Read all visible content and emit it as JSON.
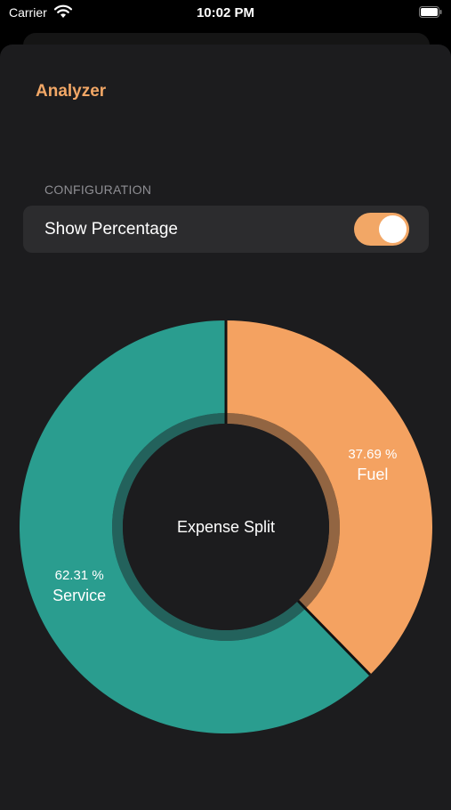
{
  "status": {
    "carrier": "Carrier",
    "time": "10:02 PM"
  },
  "page": {
    "title": "Analyzer"
  },
  "configuration": {
    "header": "CONFIGURATION",
    "show_percentage_label": "Show Percentage",
    "show_percentage_on": true
  },
  "colors": {
    "accent": "#f2a766",
    "service": "#2a9d8f",
    "fuel": "#f4a261"
  },
  "chart_data": {
    "type": "pie",
    "title": "Expense Split",
    "categories": [
      "Fuel",
      "Service"
    ],
    "values": [
      37.69,
      62.31
    ],
    "labels": [
      "37.69 %",
      "62.31 %"
    ]
  }
}
